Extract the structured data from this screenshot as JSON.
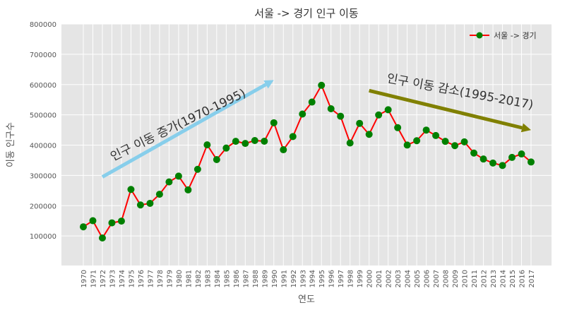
{
  "chart_data": {
    "type": "line",
    "title": "서울 -> 경기 인구 이동",
    "xlabel": "연도",
    "ylabel": "이동 인구수",
    "ylim": [
      0,
      800000
    ],
    "yticks": [
      "100000",
      "200000",
      "300000",
      "400000",
      "500000",
      "600000",
      "700000",
      "800000"
    ],
    "grid": true,
    "legend_position": "top-right",
    "categories": [
      "1970",
      "1971",
      "1972",
      "1973",
      "1974",
      "1975",
      "1976",
      "1977",
      "1978",
      "1979",
      "1980",
      "1981",
      "1982",
      "1983",
      "1984",
      "1985",
      "1986",
      "1987",
      "1988",
      "1989",
      "1990",
      "1991",
      "1992",
      "1993",
      "1994",
      "1995",
      "1996",
      "1997",
      "1998",
      "1999",
      "2000",
      "2001",
      "2002",
      "2003",
      "2004",
      "2005",
      "2006",
      "2007",
      "2008",
      "2009",
      "2010",
      "2011",
      "2012",
      "2013",
      "2014",
      "2015",
      "2016",
      "2017"
    ],
    "series": [
      {
        "name": "서울 -> 경기",
        "line_color": "#ff0000",
        "marker_color": "#008000",
        "values": [
          130149,
          150313,
          93333,
          143234,
          149045,
          253705,
          202276,
          207722,
          237684,
          278411,
          297539,
          252073,
          320174,
          400875,
          352238,
          390265,
          412535,
          405495,
          415174,
          412933,
          473889,
          384714,
          428344,
          502584,
          542204,
          597581,
          520090,
          495454,
          407050,
          471841,
          435573,
          499575,
          516765,
          457656,
          400206,
          414621,
          449632,
          431637,
          412408,
          398282,
          410735,
          373771,
          354135,
          340801,
          332785,
          359337,
          370760,
          344220
        ]
      }
    ],
    "annotations": [
      {
        "text": "인구 이동 증가(1970-1995)",
        "from": [
          "1972",
          295000
        ],
        "to": [
          "1990",
          615000
        ],
        "color": "#87ceeb"
      },
      {
        "text": "인구 이동 감소(1995-2017)",
        "from": [
          "2000",
          580000
        ],
        "to": [
          "2017",
          450000
        ],
        "color": "#808000"
      }
    ]
  }
}
